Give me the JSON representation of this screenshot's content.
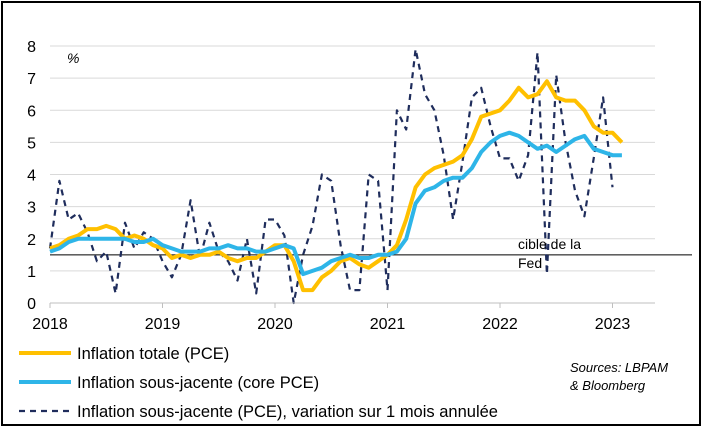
{
  "chart_data": {
    "type": "line",
    "unit_label": "%",
    "ylim": [
      0,
      8
    ],
    "yticks": [
      "0",
      "1",
      "2",
      "3",
      "4",
      "5",
      "6",
      "7",
      "8"
    ],
    "xlim": [
      2018.0,
      2023.35
    ],
    "xticks": [
      "2018",
      "2019",
      "2020",
      "2021",
      "2022",
      "2023"
    ],
    "grid": "horizontal",
    "reference_line": {
      "value": 1.5,
      "label_line1": "cible de la",
      "label_line2": "Fed"
    },
    "legend_position": "bottom-left",
    "series": [
      {
        "name": "Inflation totale (PCE)",
        "color": "#FFC000",
        "style": "solid",
        "x_start": 2018.0,
        "x_step": 0.08333,
        "values": [
          1.7,
          1.8,
          2.0,
          2.1,
          2.3,
          2.3,
          2.4,
          2.3,
          2.0,
          2.1,
          2.0,
          1.8,
          1.7,
          1.4,
          1.5,
          1.4,
          1.5,
          1.5,
          1.6,
          1.4,
          1.3,
          1.4,
          1.4,
          1.6,
          1.8,
          1.8,
          1.3,
          0.4,
          0.4,
          0.8,
          1.0,
          1.3,
          1.4,
          1.2,
          1.1,
          1.3,
          1.5,
          1.8,
          2.6,
          3.6,
          4.0,
          4.2,
          4.3,
          4.4,
          4.6,
          5.1,
          5.8,
          5.9,
          6.0,
          6.3,
          6.7,
          6.4,
          6.5,
          6.9,
          6.4,
          6.3,
          6.3,
          6.0,
          5.5,
          5.3,
          5.3,
          5.0
        ]
      },
      {
        "name": "Inflation sous-jacente (core PCE)",
        "color": "#2EB5E8",
        "style": "solid",
        "x_start": 2018.0,
        "x_step": 0.08333,
        "values": [
          1.6,
          1.7,
          1.9,
          2.0,
          2.0,
          2.0,
          2.0,
          2.0,
          2.0,
          1.9,
          1.9,
          2.0,
          1.8,
          1.7,
          1.6,
          1.6,
          1.6,
          1.7,
          1.7,
          1.8,
          1.7,
          1.7,
          1.6,
          1.6,
          1.7,
          1.8,
          1.7,
          0.9,
          1.0,
          1.1,
          1.3,
          1.4,
          1.5,
          1.4,
          1.4,
          1.5,
          1.5,
          1.6,
          2.0,
          3.1,
          3.5,
          3.6,
          3.8,
          3.9,
          3.9,
          4.2,
          4.7,
          5.0,
          5.2,
          5.3,
          5.2,
          5.0,
          4.8,
          4.9,
          4.7,
          4.9,
          5.1,
          5.2,
          4.8,
          4.7,
          4.6,
          4.6
        ]
      },
      {
        "name": "Inflation sous-jacente (PCE), variation sur 1 mois annulée",
        "color": "#1F2D5C",
        "style": "dashed",
        "x_start": 2018.0,
        "x_step": 0.08333,
        "values": [
          1.7,
          3.8,
          2.6,
          2.8,
          2.2,
          1.3,
          1.6,
          0.3,
          2.5,
          1.7,
          2.2,
          2.0,
          1.3,
          0.8,
          1.5,
          3.2,
          1.4,
          2.5,
          1.6,
          1.3,
          0.7,
          2.0,
          0.3,
          2.6,
          2.6,
          2.1,
          0.0,
          1.5,
          2.4,
          4.0,
          3.8,
          1.8,
          0.4,
          0.4,
          4.0,
          3.8,
          0.4,
          6.0,
          5.4,
          7.9,
          6.5,
          6.0,
          4.6,
          2.6,
          4.4,
          6.4,
          6.7,
          5.5,
          4.5,
          4.5,
          3.8,
          4.6,
          7.8,
          0.9,
          7.1,
          5.0,
          3.5,
          2.7,
          4.5,
          6.4,
          3.6
        ]
      }
    ]
  },
  "legend": {
    "items": [
      {
        "label": "Inflation totale (PCE)"
      },
      {
        "label": "Inflation sous-jacente (core PCE)"
      },
      {
        "label": "Inflation sous-jacente (PCE), variation sur 1 mois annulée"
      }
    ]
  },
  "source": {
    "line1": "Sources: LBPAM",
    "line2": "& Bloomberg"
  }
}
